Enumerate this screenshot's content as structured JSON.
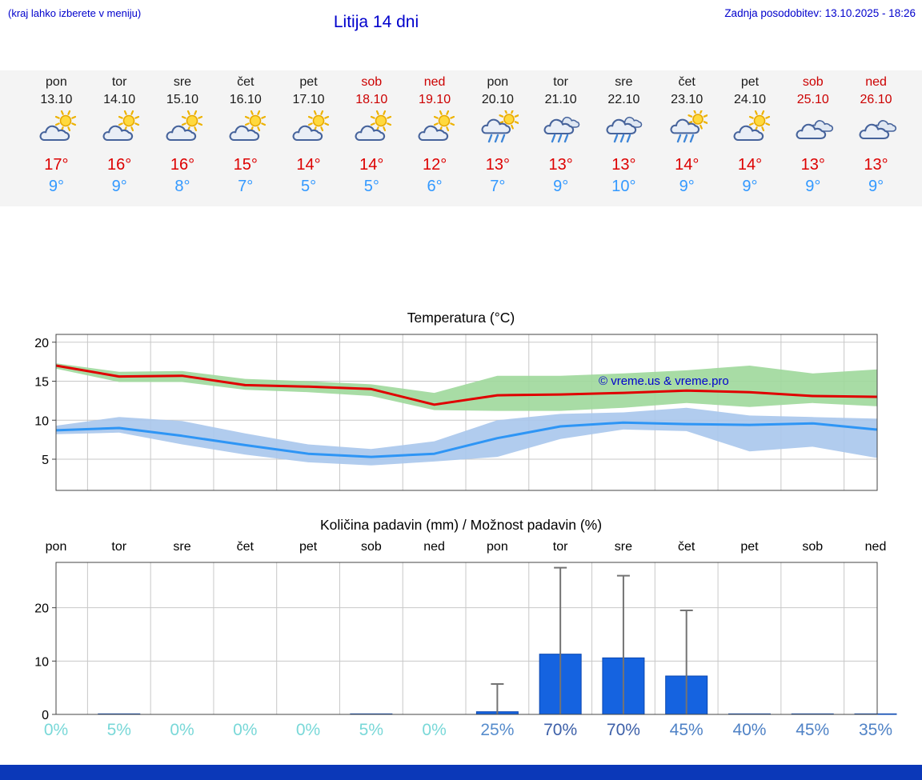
{
  "header": {
    "note": "(kraj lahko izberete v meniju)",
    "title": "Litija 14 dni",
    "last_update": "Zadnja posodobitev: 13.10.2025 - 18:26"
  },
  "watermark": "© vreme.us & vreme.pro",
  "forecast": {
    "days": [
      {
        "name": "pon",
        "date": "13.10",
        "weekend": false,
        "icon": "sun-cloud-icon",
        "high": "17°",
        "low": "9°"
      },
      {
        "name": "tor",
        "date": "14.10",
        "weekend": false,
        "icon": "sun-cloud-icon",
        "high": "16°",
        "low": "9°"
      },
      {
        "name": "sre",
        "date": "15.10",
        "weekend": false,
        "icon": "sun-cloud-icon",
        "high": "16°",
        "low": "8°"
      },
      {
        "name": "čet",
        "date": "16.10",
        "weekend": false,
        "icon": "sun-cloud-icon",
        "high": "15°",
        "low": "7°"
      },
      {
        "name": "pet",
        "date": "17.10",
        "weekend": false,
        "icon": "sun-cloud-icon",
        "high": "14°",
        "low": "5°"
      },
      {
        "name": "sob",
        "date": "18.10",
        "weekend": true,
        "icon": "sun-cloud-icon",
        "high": "14°",
        "low": "5°"
      },
      {
        "name": "ned",
        "date": "19.10",
        "weekend": true,
        "icon": "sun-cloud-icon",
        "high": "12°",
        "low": "6°"
      },
      {
        "name": "pon",
        "date": "20.10",
        "weekend": false,
        "icon": "sun-cloud-rain-icon",
        "high": "13°",
        "low": "7°"
      },
      {
        "name": "tor",
        "date": "21.10",
        "weekend": false,
        "icon": "cloud-rain-icon",
        "high": "13°",
        "low": "9°"
      },
      {
        "name": "sre",
        "date": "22.10",
        "weekend": false,
        "icon": "cloud-rain-icon",
        "high": "13°",
        "low": "10°"
      },
      {
        "name": "čet",
        "date": "23.10",
        "weekend": false,
        "icon": "sun-cloud-rain-icon",
        "high": "14°",
        "low": "9°"
      },
      {
        "name": "pet",
        "date": "24.10",
        "weekend": false,
        "icon": "sun-cloud-icon",
        "high": "14°",
        "low": "9°"
      },
      {
        "name": "sob",
        "date": "25.10",
        "weekend": true,
        "icon": "clouds-icon",
        "high": "13°",
        "low": "9°"
      },
      {
        "name": "ned",
        "date": "26.10",
        "weekend": true,
        "icon": "clouds-icon",
        "high": "13°",
        "low": "9°"
      }
    ]
  },
  "chart_data": [
    {
      "type": "line",
      "title": "Temperatura (°C)",
      "categories": [
        "13.10",
        "14.10",
        "15.10",
        "16.10",
        "17.10",
        "18.10",
        "19.10",
        "20.10",
        "21.10",
        "22.10",
        "23.10",
        "24.10",
        "25.10",
        "26.10"
      ],
      "ylim": [
        1,
        21
      ],
      "yticks": [
        5,
        10,
        15,
        20
      ],
      "grid": true,
      "series": [
        {
          "name": "max-temperature",
          "color": "#e00000",
          "values": [
            17.0,
            15.6,
            15.7,
            14.5,
            14.3,
            14.0,
            12.0,
            13.2,
            13.3,
            13.5,
            13.8,
            13.6,
            13.1,
            13.0
          ]
        },
        {
          "name": "min-temperature",
          "color": "#2e95f5",
          "values": [
            8.7,
            9.0,
            8.0,
            6.8,
            5.7,
            5.3,
            5.7,
            7.7,
            9.2,
            9.7,
            9.5,
            9.4,
            9.6,
            8.8
          ]
        }
      ],
      "bands": [
        {
          "name": "max-temperature-range",
          "color": "#9fd89b",
          "upper": [
            17.3,
            16.2,
            16.3,
            15.3,
            15.0,
            14.6,
            13.5,
            15.7,
            15.7,
            16.0,
            16.4,
            17.0,
            16.0,
            16.5
          ],
          "lower": [
            16.6,
            14.9,
            14.9,
            13.9,
            13.6,
            13.1,
            11.3,
            11.2,
            11.2,
            11.6,
            12.2,
            11.7,
            12.2,
            11.8
          ]
        },
        {
          "name": "min-temperature-range",
          "color": "#a9c6ec",
          "upper": [
            9.3,
            10.4,
            9.9,
            8.3,
            6.9,
            6.3,
            7.3,
            10.0,
            10.8,
            11.0,
            11.6,
            10.6,
            10.4,
            10.2
          ],
          "lower": [
            8.2,
            8.4,
            6.9,
            5.6,
            4.6,
            4.2,
            4.7,
            5.3,
            7.6,
            8.8,
            8.6,
            6.0,
            6.6,
            5.2
          ]
        }
      ]
    },
    {
      "type": "bar",
      "title": "Količina padavin (mm) / Možnost padavin (%)",
      "categories": [
        "pon",
        "tor",
        "sre",
        "čet",
        "pet",
        "sob",
        "ned",
        "pon",
        "tor",
        "sre",
        "čet",
        "pet",
        "sob",
        "ned"
      ],
      "values": [
        0,
        0.1,
        0,
        0,
        0,
        0.1,
        0,
        0.5,
        11.3,
        10.6,
        7.2,
        0.1,
        0.1,
        0.1
      ],
      "whiskers": [
        0,
        0,
        0,
        0,
        0,
        0,
        0,
        5.7,
        27.5,
        26.0,
        19.5,
        0,
        0,
        0
      ],
      "bar_color": "#1563e0",
      "whisker_color": "#737373",
      "ylim": [
        0,
        28.5
      ],
      "yticks": [
        0,
        10,
        20
      ],
      "grid": true,
      "probabilities": [
        {
          "label": "0%",
          "color": "#79d8d8"
        },
        {
          "label": "5%",
          "color": "#79d8d8"
        },
        {
          "label": "0%",
          "color": "#79d8d8"
        },
        {
          "label": "0%",
          "color": "#79d8d8"
        },
        {
          "label": "0%",
          "color": "#79d8d8"
        },
        {
          "label": "5%",
          "color": "#79d8d8"
        },
        {
          "label": "0%",
          "color": "#79d8d8"
        },
        {
          "label": "25%",
          "color": "#568ccc"
        },
        {
          "label": "70%",
          "color": "#3c5fa8"
        },
        {
          "label": "70%",
          "color": "#3c5fa8"
        },
        {
          "label": "45%",
          "color": "#4f82c6"
        },
        {
          "label": "40%",
          "color": "#4f82c6"
        },
        {
          "label": "45%",
          "color": "#4f82c6"
        },
        {
          "label": "35%",
          "color": "#4f82c6"
        }
      ]
    }
  ],
  "colors": {
    "accent_blue": "#0000cc",
    "weekend_red": "#cc0000",
    "high_temp_red": "#dd0000",
    "low_temp_blue": "#3399ff",
    "grid": "#c8c8c8",
    "plot_border": "#444444",
    "footer_bar": "#0b38b8",
    "strip_background": "#f4f4f4"
  }
}
